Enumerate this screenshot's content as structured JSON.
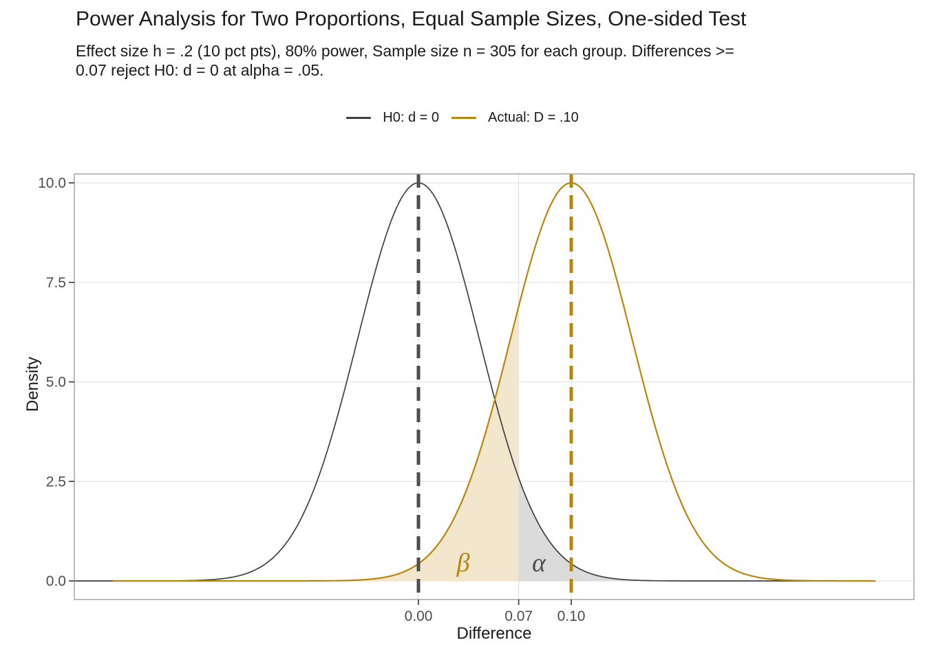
{
  "title": "Power Analysis for Two Proportions, Equal Sample Sizes, One-sided Test",
  "subtitle_lines": [
    "Effect size h = .2 (10 pct pts), 80% power, Sample size n = 305 for each group. Differences >=",
    "0.07 reject H0: d = 0 at alpha = .05."
  ],
  "legend": {
    "items": [
      {
        "label": "H0: d = 0",
        "color": "#3f3f3f"
      },
      {
        "label": "Actual: D = .10",
        "color": "#b8860b"
      }
    ]
  },
  "chart_data": {
    "type": "line",
    "title": "Power Analysis for Two Proportions, Equal Sample Sizes, One-sided Test",
    "subtitle": "Effect size h = .2 (10 pct pts), 80% power, Sample size n = 305 for each group. Differences >= 0.07 reject H0: d = 0 at alpha = .05.",
    "xlabel": "Difference",
    "ylabel": "Density",
    "xlim": [
      -0.2252,
      0.3243
    ],
    "ylim": [
      -0.466,
      10.22
    ],
    "grid": "major-only",
    "legend_position": "top-center",
    "x_ticks": [
      {
        "value": 0.0,
        "label": "0.00"
      },
      {
        "value": 0.0656,
        "label": "0.07"
      },
      {
        "value": 0.1,
        "label": "0.10"
      }
    ],
    "y_ticks": [
      {
        "value": 0.0,
        "label": "0.0"
      },
      {
        "value": 2.5,
        "label": "2.5"
      },
      {
        "value": 5.0,
        "label": "5.0"
      },
      {
        "value": 7.5,
        "label": "7.5"
      },
      {
        "value": 10.0,
        "label": "10.0"
      }
    ],
    "series": [
      {
        "name": "H0: d = 0",
        "distribution": "normal",
        "mean": 0.0,
        "sd": 0.0399,
        "peak_density": 10.0,
        "color": "#3f3f3f",
        "stroke_width": 1.7,
        "x_range": [
          -0.2252,
          0.261
        ],
        "mean_line": {
          "x": 0.0,
          "style": "dashed",
          "color": "#4d4d4d"
        }
      },
      {
        "name": "Actual: D = .10",
        "distribution": "normal",
        "mean": 0.1,
        "sd": 0.0399,
        "peak_density": 10.0,
        "color": "#b8860b",
        "stroke_width": 2.2,
        "x_range": [
          -0.2,
          0.2995
        ],
        "mean_line": {
          "x": 0.1,
          "style": "dashed",
          "color": "#b8860b"
        }
      }
    ],
    "critical_value": {
      "x": 0.0656,
      "tick_label": "0.07",
      "meaning": "reject H0 boundary, alpha = .05 one-sided"
    },
    "regions": [
      {
        "name": "beta",
        "label": "β",
        "series": "Actual: D = .10",
        "from": -0.2,
        "to": 0.0656,
        "fill": "#f2e6cc",
        "label_color": "#b8860b",
        "label_at": {
          "x": 0.0293,
          "y": 0.43
        }
      },
      {
        "name": "alpha",
        "label": "α",
        "series": "H0: d = 0",
        "from": 0.0656,
        "to": 0.261,
        "fill": "#dbdbdb",
        "label_color": "#4d4d4d",
        "label_at": {
          "x": 0.0788,
          "y": 0.43
        }
      }
    ],
    "style": {
      "grid_color": "#e4e4e4",
      "panel_border_color": "#ababab",
      "tick_mark_color": "#333333",
      "tick_label_color": "#4d4d4d",
      "background": "#ffffff"
    }
  }
}
